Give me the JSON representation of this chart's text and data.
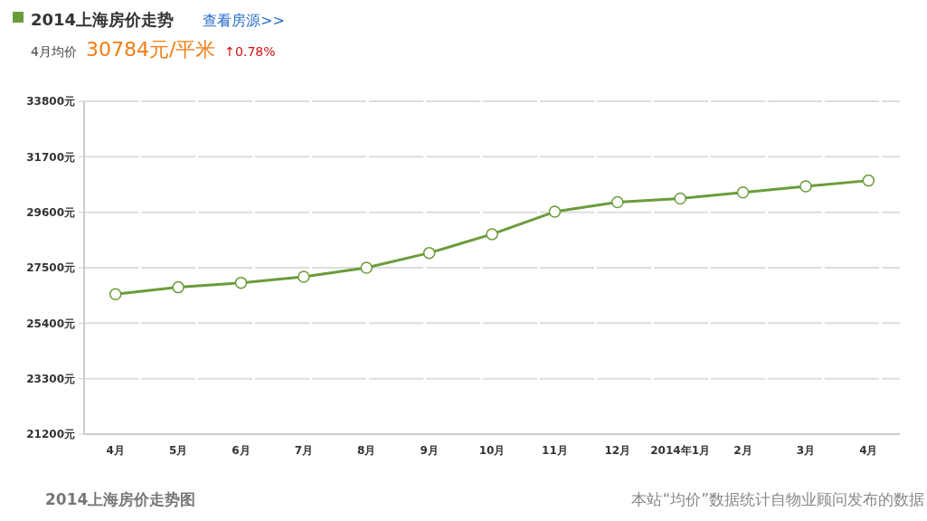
{
  "chart_data": {
    "type": "line",
    "title": "2014上海房价走势",
    "subtitle": "4月均价 30784元/平米 ↑0.78%",
    "categories": [
      "4月",
      "5月",
      "6月",
      "7月",
      "8月",
      "9月",
      "10月",
      "11月",
      "12月",
      "2014年1月",
      "2月",
      "3月",
      "4月"
    ],
    "series": [
      {
        "color": "#6b9c3a",
        "values": [
          26500,
          26760,
          26930,
          27160,
          27500,
          28060,
          28770,
          29620,
          29980,
          30120,
          30350,
          30580,
          30800
        ]
      }
    ],
    "ylim": [
      21200,
      33800
    ],
    "yticks": [
      {
        "value": 21200,
        "label": "21200元"
      },
      {
        "value": 23300,
        "label": "23300元"
      },
      {
        "value": 25400,
        "label": "25400元"
      },
      {
        "value": 27500,
        "label": "27500元"
      },
      {
        "value": 29600,
        "label": "29600元"
      },
      {
        "value": 31700,
        "label": "31700元"
      },
      {
        "value": 33800,
        "label": "33800元"
      }
    ],
    "grid": "y",
    "marker": "circle",
    "line_style": "solid",
    "annotations": [
      "查看房源>>",
      "2014上海房价走势图",
      "本站“均价”数据统计自物业顾问发布的数据"
    ]
  }
}
